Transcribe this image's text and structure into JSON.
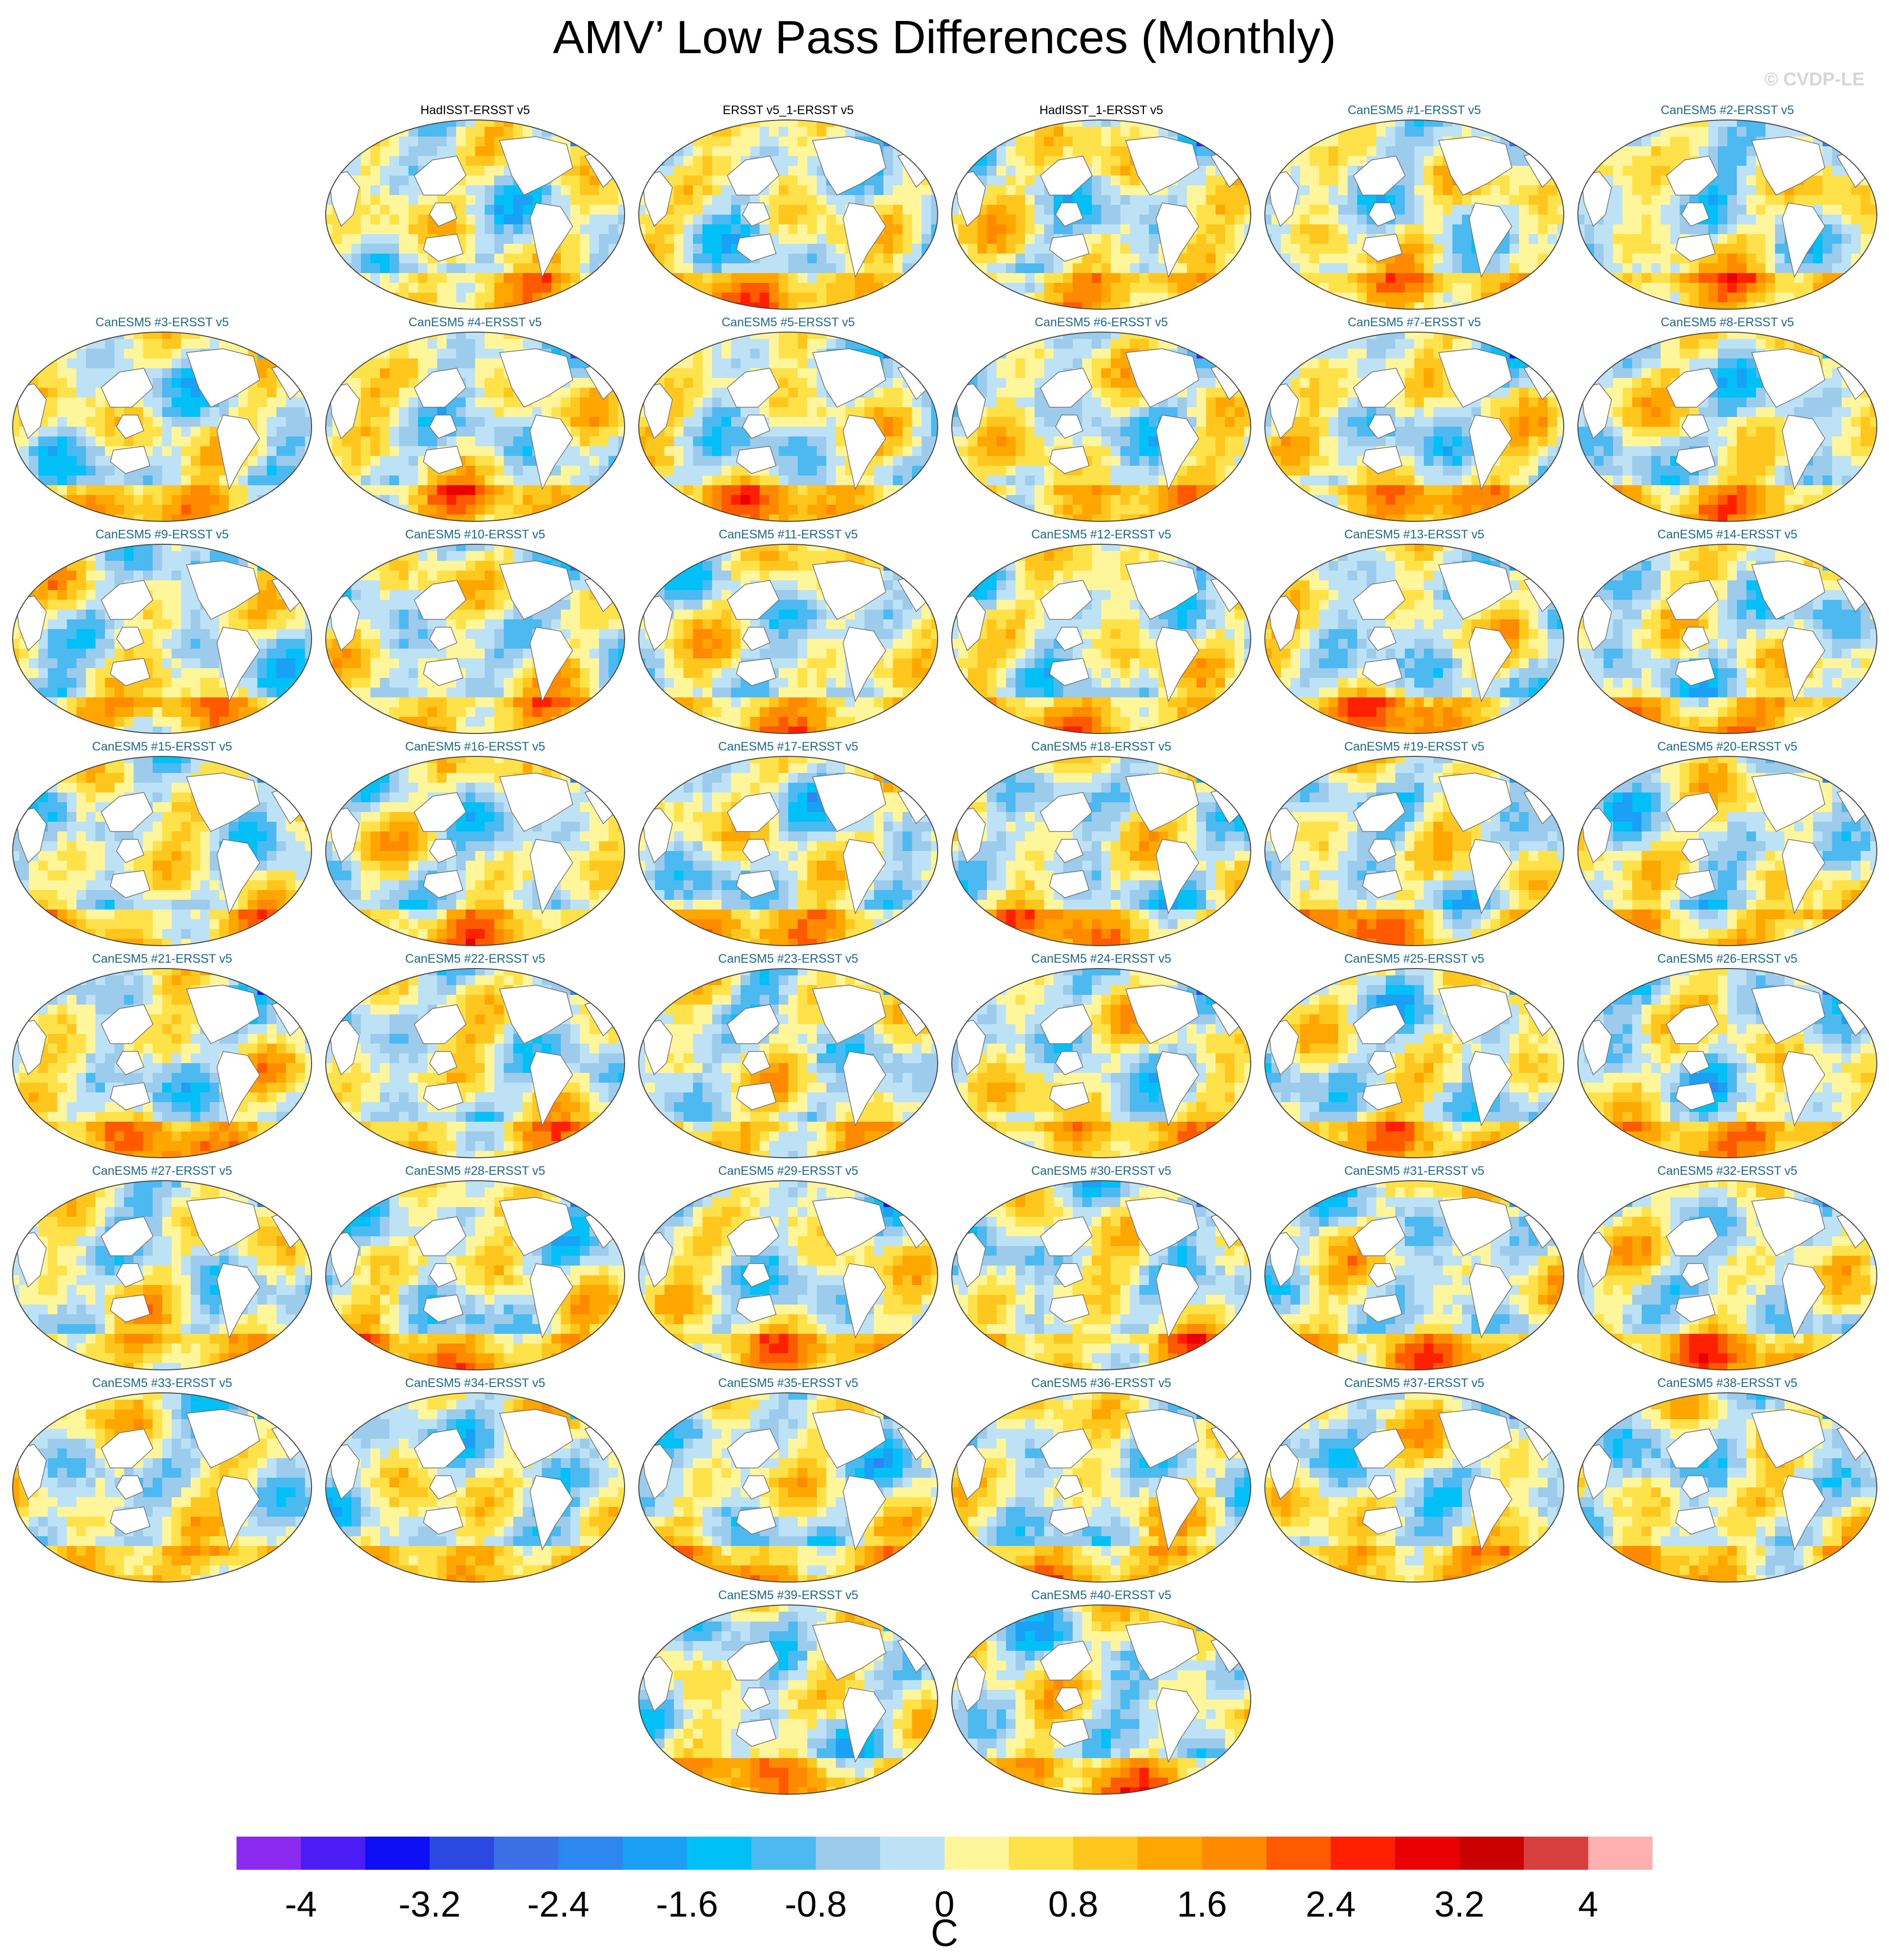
{
  "title": "AMV’ Low Pass Differences (Monthly)",
  "credit": "© CVDP-LE",
  "chart_data": {
    "type": "heatmap",
    "title": "AMV’ Low Pass Differences (Monthly)",
    "projection": "robinson",
    "observation_panels": [
      "HadISST-ERSST v5",
      "ERSST v5_1-ERSST v5",
      "HadISST_1-ERSST v5"
    ],
    "model_panels": [
      "CanESM5 #1-ERSST v5",
      "CanESM5 #2-ERSST v5",
      "CanESM5 #3-ERSST v5",
      "CanESM5 #4-ERSST v5",
      "CanESM5 #5-ERSST v5",
      "CanESM5 #6-ERSST v5",
      "CanESM5 #7-ERSST v5",
      "CanESM5 #8-ERSST v5",
      "CanESM5 #9-ERSST v5",
      "CanESM5 #10-ERSST v5",
      "CanESM5 #11-ERSST v5",
      "CanESM5 #12-ERSST v5",
      "CanESM5 #13-ERSST v5",
      "CanESM5 #14-ERSST v5",
      "CanESM5 #15-ERSST v5",
      "CanESM5 #16-ERSST v5",
      "CanESM5 #17-ERSST v5",
      "CanESM5 #18-ERSST v5",
      "CanESM5 #19-ERSST v5",
      "CanESM5 #20-ERSST v5",
      "CanESM5 #21-ERSST v5",
      "CanESM5 #22-ERSST v5",
      "CanESM5 #23-ERSST v5",
      "CanESM5 #24-ERSST v5",
      "CanESM5 #25-ERSST v5",
      "CanESM5 #26-ERSST v5",
      "CanESM5 #27-ERSST v5",
      "CanESM5 #28-ERSST v5",
      "CanESM5 #29-ERSST v5",
      "CanESM5 #30-ERSST v5",
      "CanESM5 #31-ERSST v5",
      "CanESM5 #32-ERSST v5",
      "CanESM5 #33-ERSST v5",
      "CanESM5 #34-ERSST v5",
      "CanESM5 #35-ERSST v5",
      "CanESM5 #36-ERSST v5",
      "CanESM5 #37-ERSST v5",
      "CanESM5 #38-ERSST v5",
      "CanESM5 #39-ERSST v5",
      "CanESM5 #40-ERSST v5"
    ],
    "colorbar": {
      "label": "C",
      "levels": [
        -4.4,
        -4,
        -3.6,
        -3.2,
        -2.8,
        -2.4,
        -2,
        -1.6,
        -1.2,
        -0.8,
        -0.4,
        0,
        0.4,
        0.8,
        1.2,
        1.6,
        2,
        2.4,
        2.8,
        3.2,
        3.6,
        4,
        4.4
      ],
      "tick_labels": [
        "-4",
        "-3.2",
        "-2.4",
        "-1.6",
        "-0.8",
        "0",
        "0.8",
        "1.6",
        "2.4",
        "3.2",
        "4"
      ],
      "colors": [
        "#8b2bf0",
        "#4d1df5",
        "#0d10f5",
        "#2b48e0",
        "#3a6fe6",
        "#2c87f0",
        "#1aa0f5",
        "#00c0f8",
        "#4cbaf0",
        "#9ccbec",
        "#bde2f5",
        "#fff59a",
        "#ffe14a",
        "#ffc61e",
        "#ffa600",
        "#ff8a00",
        "#ff5a00",
        "#ff2000",
        "#ea0000",
        "#c80000",
        "#d84040",
        "#ffb0b0"
      ]
    },
    "land_color": "#ffffff",
    "coastline_color": "#707070"
  }
}
